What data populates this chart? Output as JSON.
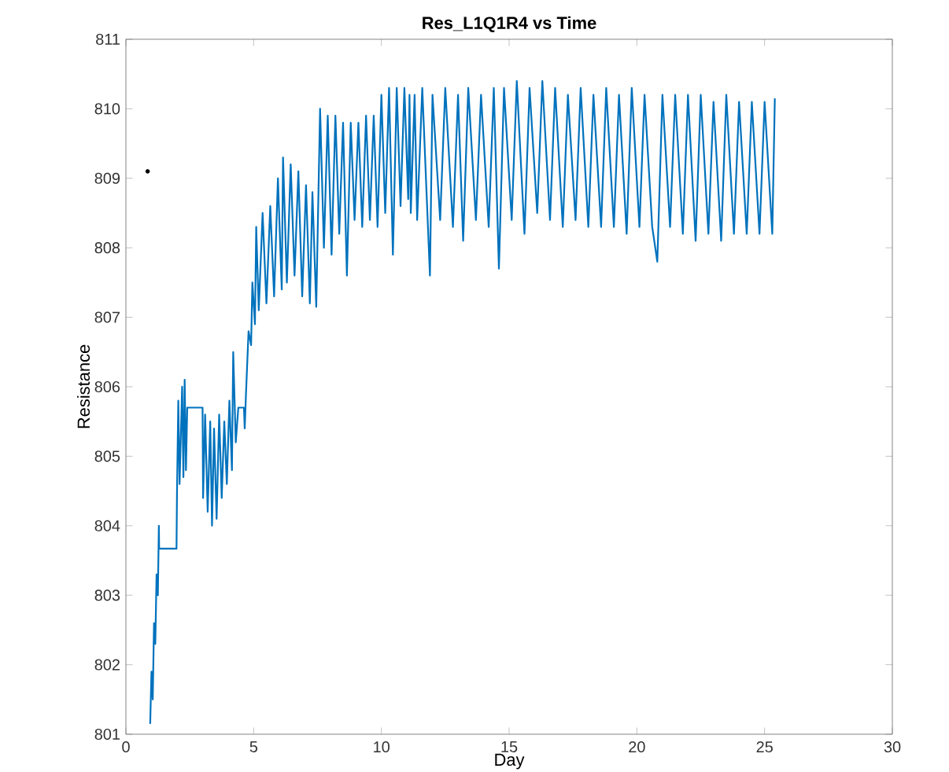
{
  "chart_data": {
    "type": "line",
    "title": "Res_L1Q1R4 vs Time",
    "xlabel": "Day",
    "ylabel": "Resistance",
    "xlim": [
      0,
      30
    ],
    "ylim": [
      801,
      811
    ],
    "xticks": [
      0,
      5,
      10,
      15,
      20,
      25,
      30
    ],
    "yticks": [
      801,
      802,
      803,
      804,
      805,
      806,
      807,
      808,
      809,
      810,
      811
    ],
    "series": [
      {
        "color": "#0072bd",
        "x": [
          0.95,
          1.0,
          1.05,
          1.1,
          1.15,
          1.2,
          1.25,
          1.29,
          1.3,
          1.98,
          2.0,
          2.05,
          2.1,
          2.2,
          2.25,
          2.3,
          2.35,
          2.4,
          3.0,
          3.02,
          3.1,
          3.2,
          3.3,
          3.37,
          3.45,
          3.55,
          3.65,
          3.75,
          3.85,
          3.95,
          4.05,
          4.15,
          4.2,
          4.3,
          4.4,
          4.62,
          4.65,
          4.7,
          4.8,
          4.9,
          4.95,
          5.05,
          5.1,
          5.2,
          5.35,
          5.5,
          5.65,
          5.8,
          5.95,
          6.1,
          6.15,
          6.3,
          6.45,
          6.6,
          6.75,
          6.9,
          7.05,
          7.2,
          7.3,
          7.45,
          7.6,
          7.75,
          7.9,
          8.05,
          8.2,
          8.35,
          8.5,
          8.65,
          8.8,
          8.95,
          9.1,
          9.25,
          9.4,
          9.55,
          9.7,
          9.85,
          10.0,
          10.15,
          10.3,
          10.45,
          10.6,
          10.75,
          10.9,
          11.05,
          11.1,
          11.15,
          11.3,
          11.4,
          11.6,
          11.9,
          12.0,
          12.3,
          12.5,
          12.8,
          13.0,
          13.2,
          13.4,
          13.7,
          13.9,
          14.2,
          14.4,
          14.6,
          14.8,
          15.1,
          15.3,
          15.6,
          15.8,
          16.1,
          16.3,
          16.6,
          16.8,
          17.1,
          17.3,
          17.6,
          17.8,
          18.1,
          18.3,
          18.6,
          18.8,
          19.1,
          19.3,
          19.6,
          19.8,
          20.1,
          20.3,
          20.6,
          20.8,
          21.0,
          21.3,
          21.5,
          21.8,
          22.0,
          22.3,
          22.5,
          22.8,
          23.0,
          23.3,
          23.5,
          23.8,
          24.0,
          24.3,
          24.5,
          24.8,
          25.0,
          25.3,
          25.4
        ],
        "values": [
          801.15,
          801.9,
          801.5,
          802.6,
          802.3,
          803.3,
          803.0,
          804.0,
          803.67,
          803.67,
          804.5,
          805.8,
          804.6,
          806.0,
          804.7,
          806.1,
          804.8,
          805.7,
          805.7,
          804.4,
          805.6,
          804.2,
          805.5,
          804.0,
          805.4,
          804.1,
          805.6,
          804.4,
          805.5,
          804.6,
          805.8,
          804.8,
          806.5,
          805.2,
          805.7,
          805.7,
          805.4,
          805.9,
          806.8,
          806.6,
          807.5,
          806.9,
          808.3,
          807.1,
          808.5,
          807.2,
          808.6,
          807.3,
          809.0,
          807.4,
          809.3,
          807.5,
          809.2,
          807.6,
          809.1,
          807.3,
          808.9,
          807.2,
          808.8,
          807.15,
          810.0,
          808.0,
          809.9,
          807.9,
          809.9,
          808.2,
          809.8,
          807.6,
          809.8,
          808.4,
          809.8,
          808.3,
          809.9,
          808.4,
          809.9,
          808.3,
          810.2,
          808.5,
          810.3,
          807.9,
          810.3,
          808.6,
          810.3,
          808.7,
          810.2,
          808.5,
          810.2,
          808.4,
          810.3,
          807.6,
          810.2,
          808.4,
          810.3,
          808.3,
          810.2,
          808.1,
          810.3,
          808.4,
          810.2,
          808.3,
          810.3,
          807.7,
          810.3,
          808.4,
          810.4,
          808.2,
          810.3,
          808.5,
          810.4,
          808.4,
          810.3,
          808.3,
          810.2,
          808.4,
          810.3,
          808.3,
          810.2,
          808.3,
          810.3,
          808.3,
          810.2,
          808.2,
          810.3,
          808.3,
          810.2,
          808.3,
          807.8,
          810.2,
          808.3,
          810.2,
          808.2,
          810.2,
          808.1,
          810.2,
          808.2,
          810.1,
          808.1,
          810.2,
          808.2,
          810.1,
          808.2,
          810.1,
          808.2,
          810.1,
          808.2,
          810.15
        ]
      },
      {
        "type": "scatter",
        "color": "#000000",
        "marker": "circle",
        "x": [
          0.85
        ],
        "values": [
          809.1
        ]
      }
    ]
  }
}
